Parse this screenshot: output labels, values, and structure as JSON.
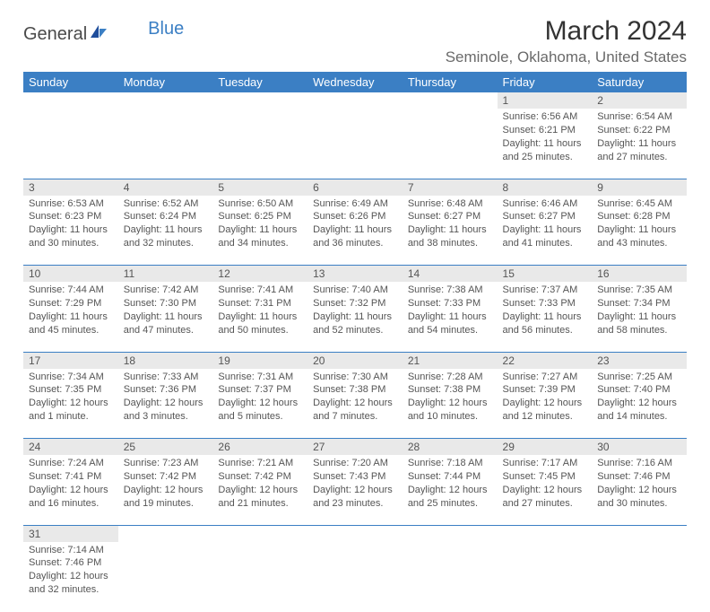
{
  "brand": {
    "text_general": "General",
    "text_blue": "Blue"
  },
  "title": "March 2024",
  "location": "Seminole, Oklahoma, United States",
  "header_bg": "#3b7fc4",
  "daynum_bg": "#e9e9e9",
  "days_of_week": [
    "Sunday",
    "Monday",
    "Tuesday",
    "Wednesday",
    "Thursday",
    "Friday",
    "Saturday"
  ],
  "weeks": [
    [
      null,
      null,
      null,
      null,
      null,
      {
        "n": "1",
        "sunrise": "6:56 AM",
        "sunset": "6:21 PM",
        "daylight": "11 hours and 25 minutes."
      },
      {
        "n": "2",
        "sunrise": "6:54 AM",
        "sunset": "6:22 PM",
        "daylight": "11 hours and 27 minutes."
      }
    ],
    [
      {
        "n": "3",
        "sunrise": "6:53 AM",
        "sunset": "6:23 PM",
        "daylight": "11 hours and 30 minutes."
      },
      {
        "n": "4",
        "sunrise": "6:52 AM",
        "sunset": "6:24 PM",
        "daylight": "11 hours and 32 minutes."
      },
      {
        "n": "5",
        "sunrise": "6:50 AM",
        "sunset": "6:25 PM",
        "daylight": "11 hours and 34 minutes."
      },
      {
        "n": "6",
        "sunrise": "6:49 AM",
        "sunset": "6:26 PM",
        "daylight": "11 hours and 36 minutes."
      },
      {
        "n": "7",
        "sunrise": "6:48 AM",
        "sunset": "6:27 PM",
        "daylight": "11 hours and 38 minutes."
      },
      {
        "n": "8",
        "sunrise": "6:46 AM",
        "sunset": "6:27 PM",
        "daylight": "11 hours and 41 minutes."
      },
      {
        "n": "9",
        "sunrise": "6:45 AM",
        "sunset": "6:28 PM",
        "daylight": "11 hours and 43 minutes."
      }
    ],
    [
      {
        "n": "10",
        "sunrise": "7:44 AM",
        "sunset": "7:29 PM",
        "daylight": "11 hours and 45 minutes."
      },
      {
        "n": "11",
        "sunrise": "7:42 AM",
        "sunset": "7:30 PM",
        "daylight": "11 hours and 47 minutes."
      },
      {
        "n": "12",
        "sunrise": "7:41 AM",
        "sunset": "7:31 PM",
        "daylight": "11 hours and 50 minutes."
      },
      {
        "n": "13",
        "sunrise": "7:40 AM",
        "sunset": "7:32 PM",
        "daylight": "11 hours and 52 minutes."
      },
      {
        "n": "14",
        "sunrise": "7:38 AM",
        "sunset": "7:33 PM",
        "daylight": "11 hours and 54 minutes."
      },
      {
        "n": "15",
        "sunrise": "7:37 AM",
        "sunset": "7:33 PM",
        "daylight": "11 hours and 56 minutes."
      },
      {
        "n": "16",
        "sunrise": "7:35 AM",
        "sunset": "7:34 PM",
        "daylight": "11 hours and 58 minutes."
      }
    ],
    [
      {
        "n": "17",
        "sunrise": "7:34 AM",
        "sunset": "7:35 PM",
        "daylight": "12 hours and 1 minute."
      },
      {
        "n": "18",
        "sunrise": "7:33 AM",
        "sunset": "7:36 PM",
        "daylight": "12 hours and 3 minutes."
      },
      {
        "n": "19",
        "sunrise": "7:31 AM",
        "sunset": "7:37 PM",
        "daylight": "12 hours and 5 minutes."
      },
      {
        "n": "20",
        "sunrise": "7:30 AM",
        "sunset": "7:38 PM",
        "daylight": "12 hours and 7 minutes."
      },
      {
        "n": "21",
        "sunrise": "7:28 AM",
        "sunset": "7:38 PM",
        "daylight": "12 hours and 10 minutes."
      },
      {
        "n": "22",
        "sunrise": "7:27 AM",
        "sunset": "7:39 PM",
        "daylight": "12 hours and 12 minutes."
      },
      {
        "n": "23",
        "sunrise": "7:25 AM",
        "sunset": "7:40 PM",
        "daylight": "12 hours and 14 minutes."
      }
    ],
    [
      {
        "n": "24",
        "sunrise": "7:24 AM",
        "sunset": "7:41 PM",
        "daylight": "12 hours and 16 minutes."
      },
      {
        "n": "25",
        "sunrise": "7:23 AM",
        "sunset": "7:42 PM",
        "daylight": "12 hours and 19 minutes."
      },
      {
        "n": "26",
        "sunrise": "7:21 AM",
        "sunset": "7:42 PM",
        "daylight": "12 hours and 21 minutes."
      },
      {
        "n": "27",
        "sunrise": "7:20 AM",
        "sunset": "7:43 PM",
        "daylight": "12 hours and 23 minutes."
      },
      {
        "n": "28",
        "sunrise": "7:18 AM",
        "sunset": "7:44 PM",
        "daylight": "12 hours and 25 minutes."
      },
      {
        "n": "29",
        "sunrise": "7:17 AM",
        "sunset": "7:45 PM",
        "daylight": "12 hours and 27 minutes."
      },
      {
        "n": "30",
        "sunrise": "7:16 AM",
        "sunset": "7:46 PM",
        "daylight": "12 hours and 30 minutes."
      }
    ],
    [
      {
        "n": "31",
        "sunrise": "7:14 AM",
        "sunset": "7:46 PM",
        "daylight": "12 hours and 32 minutes."
      },
      null,
      null,
      null,
      null,
      null,
      null
    ]
  ],
  "labels": {
    "sunrise": "Sunrise: ",
    "sunset": "Sunset: ",
    "daylight": "Daylight: "
  }
}
